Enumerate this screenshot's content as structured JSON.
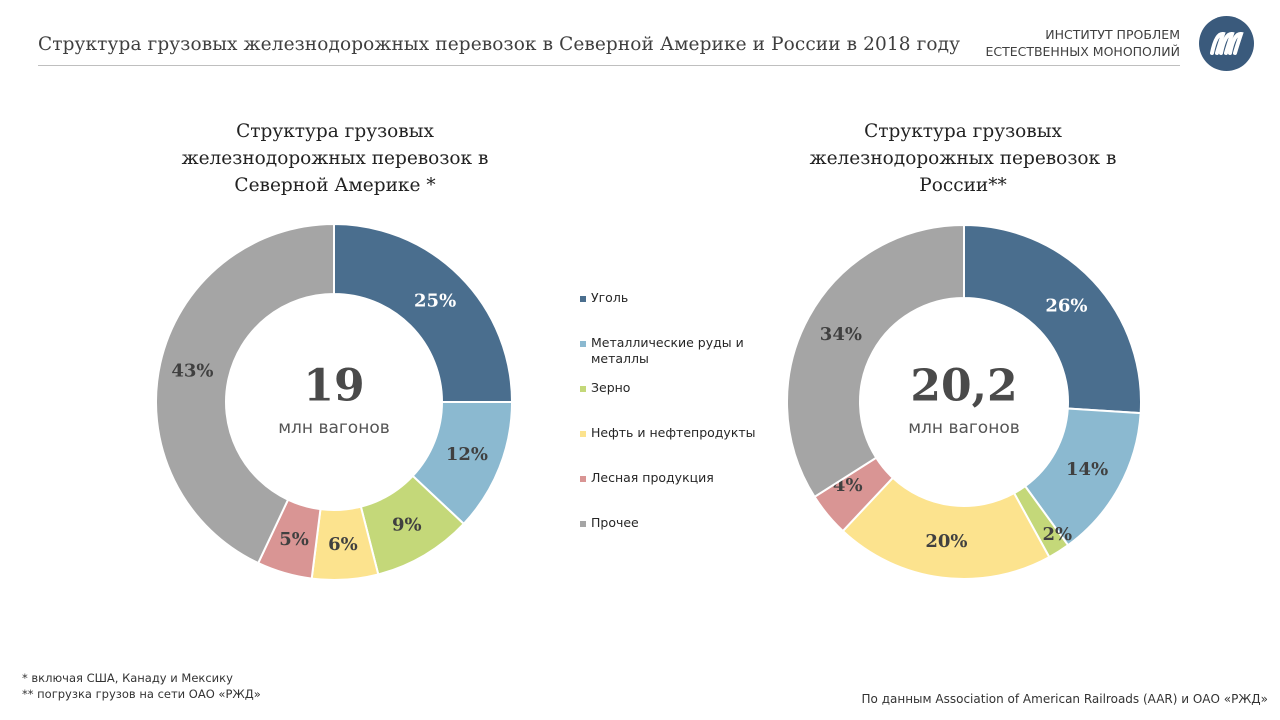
{
  "header": {
    "title": "Структура грузовых железнодорожных перевозок в Северной Америке и России в 2018 году",
    "org_line1": "ИНСТИТУТ ПРОБЛЕМ",
    "org_line2": "ЕСТЕСТВЕННЫХ МОНОПОЛИЙ"
  },
  "colors": {
    "coal": "#4a6e8e",
    "ores": "#8bb9d0",
    "grain": "#c4d879",
    "oil": "#fce38e",
    "timber": "#d99594",
    "other": "#a5a5a5",
    "logo": "#3a5a7c"
  },
  "legend": [
    {
      "key": "coal",
      "label": "Уголь"
    },
    {
      "key": "ores",
      "label": "Металлические руды и металлы"
    },
    {
      "key": "grain",
      "label": "Зерно"
    },
    {
      "key": "oil",
      "label": "Нефть и нефтепродукты"
    },
    {
      "key": "timber",
      "label": "Лесная продукция"
    },
    {
      "key": "other",
      "label": "Прочее"
    }
  ],
  "chart_data": [
    {
      "type": "pie",
      "title_lines": [
        "Структура грузовых",
        "железнодорожных перевозок в",
        "Северной Америке *"
      ],
      "center_value": "19",
      "center_unit": "млн вагонов",
      "categories": [
        "Уголь",
        "Металлические руды и металлы",
        "Зерно",
        "Нефть и нефтепродукты",
        "Лесная продукция",
        "Прочее"
      ],
      "values": [
        25,
        12,
        9,
        6,
        5,
        43
      ],
      "labels": [
        "25%",
        "12%",
        "9%",
        "6%",
        "5%",
        "43%"
      ]
    },
    {
      "type": "pie",
      "title_lines": [
        "Структура грузовых",
        "железнодорожных перевозок в",
        "России**"
      ],
      "center_value": "20,2",
      "center_unit": "млн вагонов",
      "categories": [
        "Уголь",
        "Металлические руды и металлы",
        "Зерно",
        "Нефть и нефтепродукты",
        "Лесная продукция",
        "Прочее"
      ],
      "values": [
        26,
        14,
        2,
        20,
        4,
        34
      ],
      "labels": [
        "26%",
        "14%",
        "2%",
        "20%",
        "4%",
        "34%"
      ]
    }
  ],
  "footnotes": [
    "*   включая США, Канаду и Мексику",
    "**  погрузка грузов  на сети ОАО «РЖД»"
  ],
  "source": "По данным Association of American Railroads (AAR) и ОАО «РЖД»"
}
